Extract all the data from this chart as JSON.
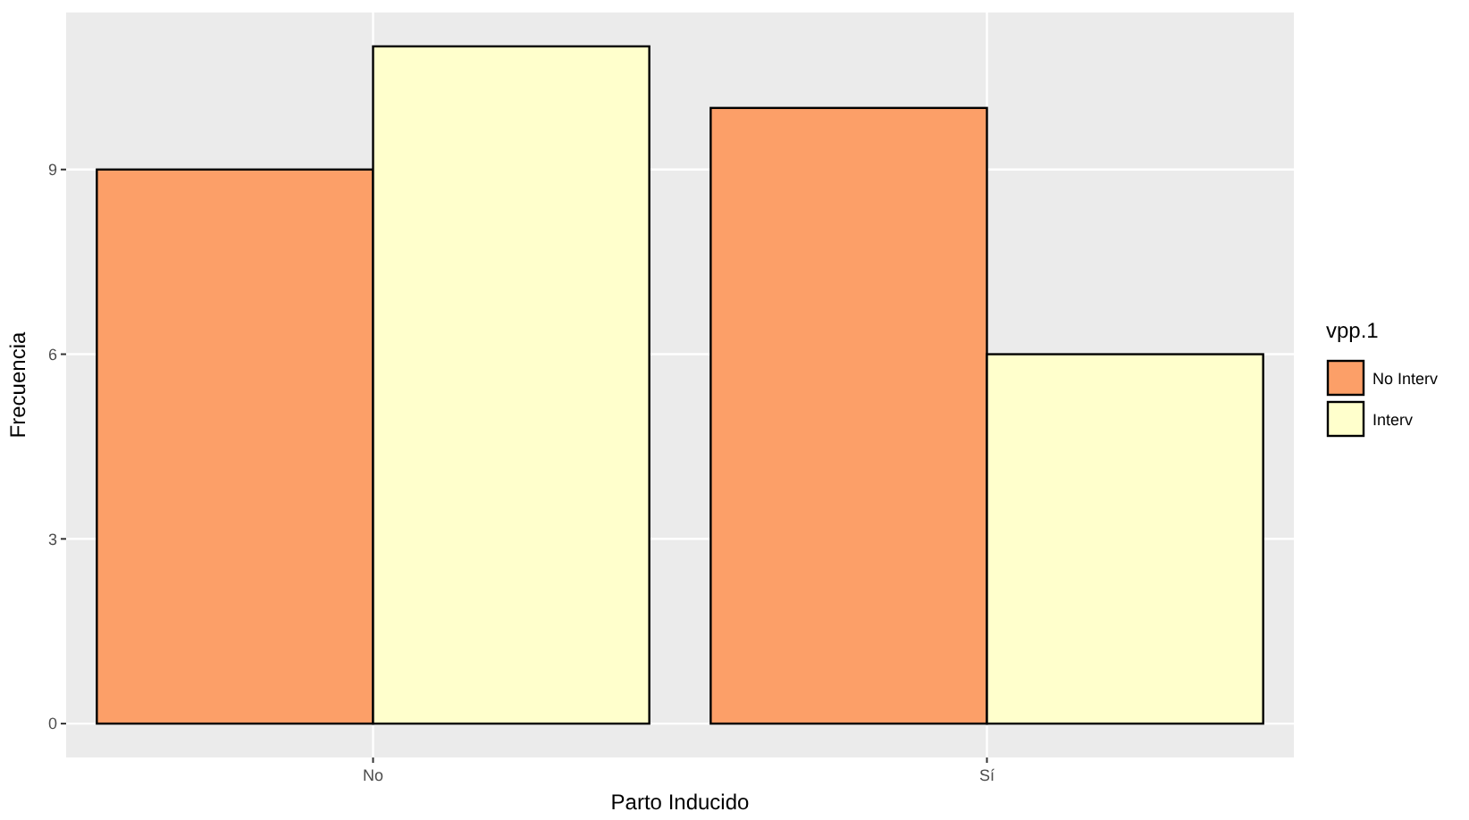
{
  "chart_data": {
    "type": "bar",
    "xlabel": "Parto Inducido",
    "ylabel": "Frecuencia",
    "legend_title": "vpp.1",
    "categories": [
      "No",
      "Sí"
    ],
    "series": [
      {
        "name": "No Interv",
        "color": "#fc9f68",
        "values": [
          9,
          10
        ]
      },
      {
        "name": "Interv",
        "color": "#ffffcc",
        "values": [
          11,
          6
        ]
      }
    ],
    "ylim": [
      -0.55,
      11.55
    ],
    "yticks": [
      0,
      3,
      6,
      9
    ],
    "grid": true,
    "legend": "right"
  }
}
